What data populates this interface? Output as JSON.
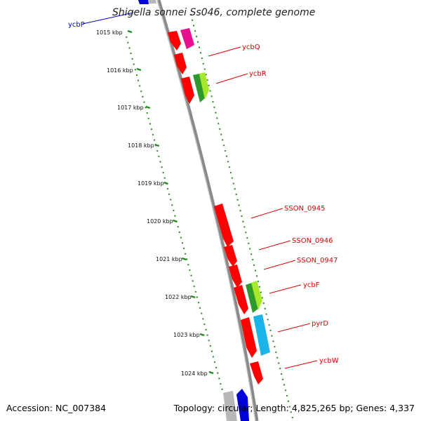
{
  "title": "Shigella sonnei Ss046, complete genome",
  "footer": {
    "accession": "Accession: NC_007384",
    "summary": "Topology: circular; Length: 4,825,265 bp; Genes: 4,337"
  },
  "colors": {
    "gene_red": "#ff0000",
    "gene_magenta": "#e8108c",
    "gene_green": "#2e9a2e",
    "gene_lime": "#a8e82a",
    "gene_cyan": "#1ab4e8",
    "gene_blue": "#0000dd",
    "gene_grey": "#b0b0b0",
    "backbone": "#8a8a8a",
    "ruler": "#228b22",
    "label_red": "#dd0000",
    "label_blue": "#0000cc"
  },
  "kbp_ticks": [
    "1015 kbp",
    "1016 kbp",
    "1017 kbp",
    "1018 kbp",
    "1019 kbp",
    "1020 kbp",
    "1021 kbp",
    "1022 kbp",
    "1023 kbp",
    "1024 kbp"
  ],
  "gene_labels": [
    {
      "name": "ycbP",
      "color": "blue"
    },
    {
      "name": "ycbQ",
      "color": "red"
    },
    {
      "name": "ycbR",
      "color": "red"
    },
    {
      "name": "SSON_0945",
      "color": "red"
    },
    {
      "name": "SSON_0946",
      "color": "red"
    },
    {
      "name": "SSON_0947",
      "color": "red"
    },
    {
      "name": "ycbF",
      "color": "red"
    },
    {
      "name": "pyrD",
      "color": "red"
    },
    {
      "name": "ycbW",
      "color": "red"
    }
  ]
}
